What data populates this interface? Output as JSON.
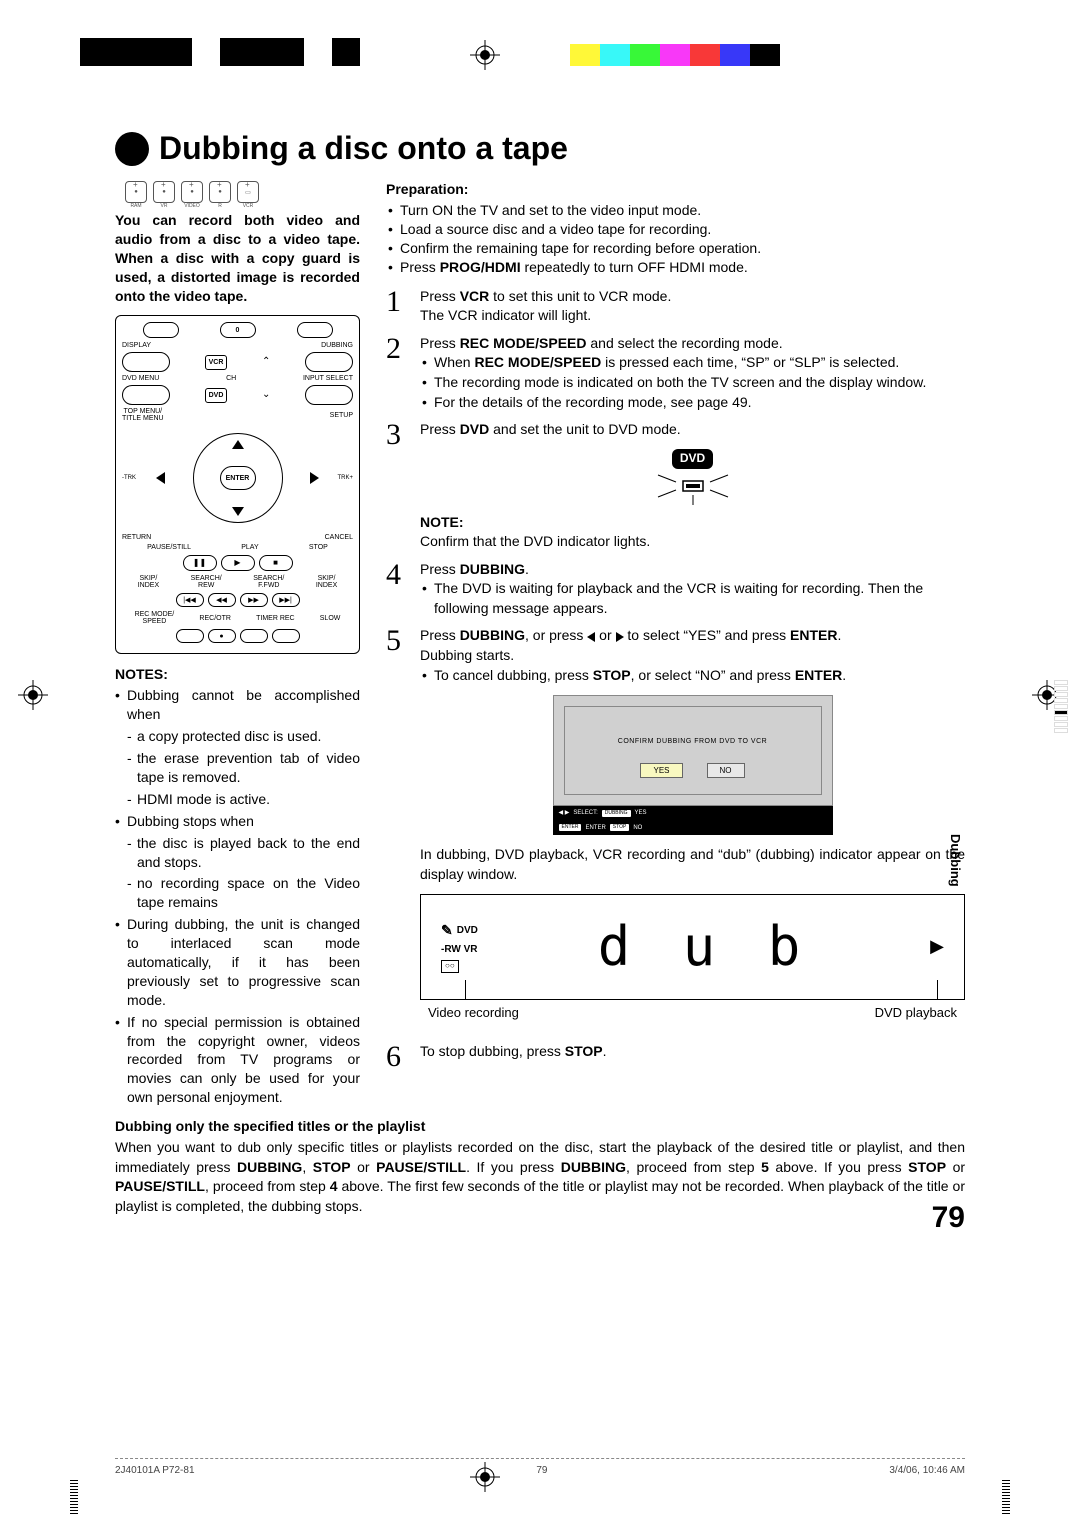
{
  "colorbar": [
    "#ffffff",
    "#fff838",
    "#38f8f8",
    "#38f838",
    "#f838f8",
    "#f83838",
    "#3838f8",
    "#000000"
  ],
  "title": "Dubbing a disc onto a tape",
  "disc_labels": [
    "RAM",
    "VR",
    "VIDEO",
    "R",
    "VCR"
  ],
  "intro": "You can record both video and audio from a disc to a video tape. When a disc with a copy guard is used, a distorted image is recorded onto the video tape.",
  "remote": {
    "top_center": "0",
    "row1_left": "DISPLAY",
    "row1_right": "DUBBING",
    "vcr": "VCR",
    "ch": "CH",
    "row2_left": "DVD MENU",
    "row2_right": "INPUT SELECT",
    "dvd": "DVD",
    "row3_left": "TOP MENU/\nTITLE MENU",
    "row3_right": "SETUP",
    "trk_minus": "-TRK",
    "enter": "ENTER",
    "trk_plus": "TRK+",
    "return": "RETURN",
    "cancel": "CANCEL",
    "pause": "PAUSE/STILL",
    "play": "PLAY",
    "stop": "STOP",
    "t_row1": [
      "SKIP/\nINDEX",
      "SEARCH/\nREW",
      "SEARCH/\nF.FWD",
      "SKIP/\nINDEX"
    ],
    "t_row2": [
      "REC MODE/\nSPEED",
      "REC/OTR",
      "TIMER REC",
      "SLOW"
    ]
  },
  "notes_head": "NOTES:",
  "notes": {
    "n1": "Dubbing cannot be accomplished when",
    "n1a": "a copy protected disc is used.",
    "n1b": "the erase prevention tab of video tape is removed.",
    "n1c": "HDMI mode is active.",
    "n2": "Dubbing stops when",
    "n2a": "the disc is played back to the end and stops.",
    "n2b": "no recording space on the Video tape remains",
    "n3": "During dubbing, the unit is changed to interlaced scan mode automatically, if it has been previously set to progressive scan mode.",
    "n4": "If no special permission is obtained from the copyright owner, videos recorded from TV programs or movies can only be used for your own personal enjoyment."
  },
  "prep_head": "Preparation:",
  "prep": {
    "p1": "Turn ON the TV and set to the video input mode.",
    "p2": "Load a source disc and a video tape for recording.",
    "p3": "Confirm the remaining tape for recording before operation.",
    "p4_a": "Press ",
    "p4_b": "PROG/HDMI",
    "p4_c": " repeatedly to turn OFF HDMI mode."
  },
  "steps": {
    "s1a": "Press ",
    "s1b": "VCR",
    "s1c": " to set this unit to VCR mode.",
    "s1d": "The VCR indicator will light.",
    "s2a": "Press ",
    "s2b": "REC MODE/SPEED",
    "s2c": " and select the recording mode.",
    "s2l1a": "When ",
    "s2l1b": "REC MODE/SPEED",
    "s2l1c": " is pressed each time, “SP” or “SLP” is selected.",
    "s2l2": "The recording mode is indicated on both the TV screen and the display window.",
    "s2l3": "For the details of the recording mode, see page 49.",
    "s3a": "Press ",
    "s3b": "DVD",
    "s3c": " and set the unit to DVD mode.",
    "note_head": "NOTE:",
    "note_text": "Confirm that the DVD indicator lights.",
    "s4a": "Press ",
    "s4b": "DUBBING",
    "s4c": ".",
    "s4l1": "The DVD is waiting for playback and the VCR is waiting for recording. Then the following message appears.",
    "s5a": "Press ",
    "s5b": "DUBBING",
    "s5c": ", or press ",
    "s5d": " or ",
    "s5e": " to select “YES” and press ",
    "s5f": "ENTER",
    "s5g": ".",
    "s5l1": "Dubbing starts.",
    "s5l2a": "To cancel dubbing, press ",
    "s5l2b": "STOP",
    "s5l2c": ", or select “NO” and press ",
    "s5l2d": "ENTER",
    "s5l2e": ".",
    "s6a": "To stop dubbing, press ",
    "s6b": "STOP",
    "s6c": "."
  },
  "dvd_badge": "DVD",
  "osd": {
    "msg": "CONFIRM DUBBING FROM DVD TO VCR",
    "yes": "YES",
    "no": "NO",
    "bar_select": "SELECT:",
    "bar_dubbing": "DUBBING",
    "bar_yes": "YES",
    "bar_enter": "ENTER",
    "bar_enter2": "ENTER",
    "bar_stop": "STOP",
    "bar_no": "NO"
  },
  "after_osd": "In dubbing, DVD playback, VCR recording and “dub” (dubbing) indicator appear on the display window.",
  "display": {
    "dvd": "DVD",
    "rw": "-RW VR",
    "dub": "d u b"
  },
  "dp_label_left": "Video recording",
  "dp_label_right": "DVD playback",
  "side_tab": "Dubbing",
  "bottom_head": "Dubbing only the specified titles or the playlist",
  "bottom": {
    "t1": "When you want to dub only specific titles or playlists recorded on the disc, start the playback of the desired title or playlist, and then immediately press ",
    "t2": "DUBBING",
    "t3": ", ",
    "t4": "STOP",
    "t5": " or ",
    "t6": "PAUSE/STILL",
    "t7": ". If you press ",
    "t8": "DUBBING",
    "t9": ", proceed from step ",
    "t10": "5",
    "t11": " above. If you press ",
    "t12": "STOP",
    "t13": " or ",
    "t14": "PAUSE/STILL",
    "t15": ", proceed from step ",
    "t16": "4",
    "t17": " above. The first few seconds of the title or playlist may not be recorded. When playback of the title or playlist is completed, the dubbing stops."
  },
  "page_num": "79",
  "footer_left": "2J40101A P72-81",
  "footer_mid": "79",
  "footer_right": "3/4/06, 10:46 AM"
}
